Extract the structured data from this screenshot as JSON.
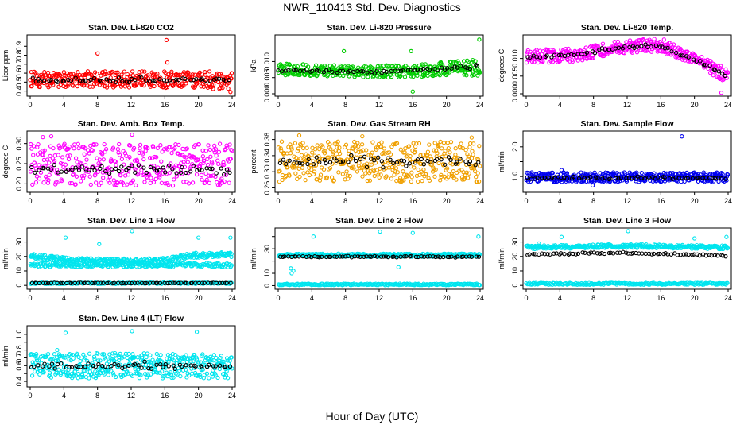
{
  "figure": {
    "title": "NWR_110413  Std. Dev. Diagnostics",
    "xlabel": "Hour of Day (UTC)"
  },
  "chart_data": [
    {
      "type": "scatter",
      "title": "Stan. Dev. Li-820 CO2",
      "ylabel": "Licor ppm",
      "xlim": [
        0,
        24
      ],
      "ylim": [
        0.37,
        1.0
      ],
      "xticks": [
        0,
        4,
        8,
        12,
        16,
        20,
        24
      ],
      "yticks": [
        0.4,
        0.5,
        0.6,
        0.7,
        0.8,
        0.9
      ],
      "color": "#ff0000",
      "series": [
        {
          "band": [
            [
              0,
              0.44,
              0.62
            ],
            [
              12,
              0.44,
              0.62
            ],
            [
              24,
              0.42,
              0.62
            ]
          ],
          "n": 380
        },
        {
          "line": [
            [
              0,
              0.52
            ],
            [
              12,
              0.52
            ],
            [
              24,
              0.53
            ]
          ],
          "jitter": 0.04,
          "n": 60,
          "color": "#000000"
        }
      ],
      "points": [
        [
          8,
          0.82
        ],
        [
          16.2,
          0.97
        ],
        [
          16.3,
          0.72
        ],
        [
          23.8,
          0.39
        ]
      ]
    },
    {
      "type": "scatter",
      "title": "Stan. Dev. Li-820 Pressure",
      "ylabel": "kPa",
      "xlim": [
        0,
        24
      ],
      "ylim": [
        0.0,
        0.0175
      ],
      "xticks": [
        0,
        4,
        8,
        12,
        16,
        20,
        24
      ],
      "yticks": [
        0.0,
        0.005,
        0.01
      ],
      "ytick_labels": [
        "0.000",
        "0.005",
        "0.010"
      ],
      "color": "#00cc00",
      "series": [
        {
          "band": [
            [
              0,
              0.0058,
              0.0094
            ],
            [
              12,
              0.005,
              0.0088
            ],
            [
              24,
              0.0055,
              0.0106
            ]
          ],
          "n": 380
        },
        {
          "line": [
            [
              0,
              0.0074
            ],
            [
              12,
              0.0068
            ],
            [
              24,
              0.0085
            ]
          ],
          "jitter": 0.0008,
          "n": 60,
          "color": "#000000"
        }
      ],
      "points": [
        [
          7.8,
          0.0132
        ],
        [
          15.8,
          0.0132
        ],
        [
          23.9,
          0.0168
        ],
        [
          16,
          0.0007
        ]
      ]
    },
    {
      "type": "scatter",
      "title": "Stan. Dev. Li-820 Temp.",
      "ylabel": "degrees C",
      "xlim": [
        0,
        24
      ],
      "ylim": [
        0.0,
        0.016
      ],
      "xticks": [
        0,
        4,
        8,
        12,
        16,
        20,
        24
      ],
      "yticks": [
        0.0,
        0.005,
        0.01
      ],
      "ytick_labels": [
        "0.000",
        "0.005",
        "0.010"
      ],
      "color": "#ff00ff",
      "series": [
        {
          "band": [
            [
              0,
              0.0086,
              0.0124
            ],
            [
              6,
              0.0091,
              0.0129
            ],
            [
              11,
              0.0115,
              0.015
            ],
            [
              16,
              0.0118,
              0.0158
            ],
            [
              20,
              0.0082,
              0.0115
            ],
            [
              24,
              0.0028,
              0.0072
            ]
          ],
          "n": 380
        },
        {
          "line": [
            [
              0,
              0.0105
            ],
            [
              6,
              0.011
            ],
            [
              11,
              0.0132
            ],
            [
              16,
              0.0136
            ],
            [
              20,
              0.0098
            ],
            [
              24,
              0.005
            ]
          ],
          "jitter": 0.0007,
          "n": 60,
          "color": "#000000"
        }
      ],
      "points": [
        [
          23.2,
          0.0003
        ]
      ]
    },
    {
      "type": "scatter",
      "title": "Stan. Dev. Amb. Box Temp.",
      "ylabel": "degrees C",
      "xlim": [
        0,
        24
      ],
      "ylim": [
        0.185,
        0.325
      ],
      "xticks": [
        0,
        4,
        8,
        12,
        16,
        20,
        24
      ],
      "yticks": [
        0.2,
        0.25,
        0.3
      ],
      "ytick_labels": [
        "0.20",
        "0.25",
        "0.30"
      ],
      "color": "#ff00ff",
      "series": [
        {
          "band": [
            [
              0,
              0.195,
              0.3
            ],
            [
              12,
              0.195,
              0.3
            ],
            [
              24,
              0.195,
              0.3
            ]
          ],
          "n": 380
        },
        {
          "line": [
            [
              0,
              0.235
            ],
            [
              12,
              0.235
            ],
            [
              24,
              0.235
            ]
          ],
          "jitter": 0.015,
          "n": 60,
          "color": "#000000"
        }
      ],
      "points": [
        [
          12.1,
          0.322
        ],
        [
          2.5,
          0.318
        ],
        [
          1.5,
          0.316
        ]
      ]
    },
    {
      "type": "scatter",
      "title": "Stan. Dev. Gas Stream RH",
      "ylabel": "percent",
      "xlim": [
        0,
        24
      ],
      "ylim": [
        0.255,
        0.395
      ],
      "xticks": [
        0,
        4,
        8,
        12,
        16,
        20,
        24
      ],
      "yticks": [
        0.26,
        0.3,
        0.34,
        0.38
      ],
      "ytick_labels": [
        "0.26",
        "0.30",
        "0.34",
        "0.38"
      ],
      "color": "#f0a000",
      "series": [
        {
          "band": [
            [
              0,
              0.275,
              0.375
            ],
            [
              12,
              0.275,
              0.375
            ],
            [
              24,
              0.275,
              0.375
            ]
          ],
          "n": 420
        },
        {
          "line": [
            [
              0,
              0.325
            ],
            [
              12,
              0.325
            ],
            [
              24,
              0.33
            ]
          ],
          "jitter": 0.018,
          "n": 60,
          "color": "#000000"
        }
      ],
      "points": [
        [
          2.5,
          0.39
        ],
        [
          23,
          0.385
        ],
        [
          10,
          0.388
        ]
      ]
    },
    {
      "type": "scatter",
      "title": "Stan. Dev. Sample Flow",
      "ylabel": "ml/min",
      "xlim": [
        0,
        24
      ],
      "ylim": [
        0.55,
        2.45
      ],
      "xticks": [
        0,
        4,
        8,
        12,
        16,
        20,
        24
      ],
      "yticks": [
        1.0,
        1.5,
        2.0
      ],
      "ytick_labels": [
        "1.0",
        "",
        "2.0"
      ],
      "color": "#0000ee",
      "series": [
        {
          "band": [
            [
              0,
              0.82,
              1.14
            ],
            [
              12,
              0.82,
              1.14
            ],
            [
              24,
              0.82,
              1.14
            ]
          ],
          "n": 420
        },
        {
          "line": [
            [
              0,
              0.95
            ],
            [
              12,
              0.95
            ],
            [
              24,
              0.95
            ]
          ],
          "jitter": 0.07,
          "n": 60,
          "color": "#000000"
        }
      ],
      "points": [
        [
          18.5,
          2.35
        ],
        [
          7.9,
          0.7
        ],
        [
          4.2,
          1.22
        ]
      ]
    },
    {
      "type": "scatter",
      "title": "Stan. Dev. Line 1 Flow",
      "ylabel": "ml/min",
      "xlim": [
        0,
        24
      ],
      "ylim": [
        -1,
        38
      ],
      "xticks": [
        0,
        4,
        8,
        12,
        16,
        20,
        24
      ],
      "yticks": [
        0,
        10,
        20,
        30
      ],
      "color": "#00e5ee",
      "series": [
        {
          "band": [
            [
              0,
              18.5,
              22
            ],
            [
              4,
              16,
              19.5
            ],
            [
              10,
              15,
              18.5
            ],
            [
              16,
              15.5,
              19
            ],
            [
              19,
              19,
              22.5
            ],
            [
              24,
              19.5,
              23
            ]
          ],
          "n": 320
        },
        {
          "band": [
            [
              0,
              12.5,
              15.5
            ],
            [
              24,
              12.5,
              15.5
            ]
          ],
          "n": 240
        },
        {
          "band": [
            [
              0,
              1.0,
              2.0
            ],
            [
              24,
              1.0,
              2.0
            ]
          ],
          "n": 180
        },
        {
          "line": [
            [
              0,
              1.6
            ],
            [
              24,
              1.6
            ]
          ],
          "jitter": 0.3,
          "n": 70,
          "color": "#000000"
        }
      ],
      "points": [
        [
          4.2,
          33
        ],
        [
          12.1,
          37.5
        ],
        [
          20,
          33
        ],
        [
          23.8,
          33
        ],
        [
          8.2,
          28.5
        ]
      ]
    },
    {
      "type": "scatter",
      "title": "Stan. Dev. Line 2 Flow",
      "ylabel": "ml/min",
      "xlim": [
        0,
        24
      ],
      "ylim": [
        -1,
        45
      ],
      "xticks": [
        0,
        4,
        8,
        12,
        16,
        20,
        24
      ],
      "yticks": [
        0,
        10,
        20,
        30,
        40
      ],
      "ytick_labels": [
        "0",
        "10",
        "",
        "30",
        ""
      ],
      "color": "#00e5ee",
      "series": [
        {
          "band": [
            [
              0,
              23.5,
              26
            ],
            [
              24,
              23.5,
              26
            ]
          ],
          "n": 320
        },
        {
          "band": [
            [
              0,
              0.4,
              1.6
            ],
            [
              24,
              0.4,
              1.6
            ]
          ],
          "n": 220
        },
        {
          "line": [
            [
              0,
              23.5
            ],
            [
              24,
              23.5
            ]
          ],
          "jitter": 0.8,
          "n": 70,
          "color": "#000000"
        }
      ],
      "points": [
        [
          4.2,
          40
        ],
        [
          12.1,
          44
        ],
        [
          16,
          43
        ],
        [
          23.8,
          40
        ],
        [
          1.6,
          10
        ],
        [
          1.8,
          12
        ],
        [
          1.5,
          14
        ],
        [
          14.3,
          15
        ]
      ]
    },
    {
      "type": "scatter",
      "title": "Stan. Dev. Line 3 Flow",
      "ylabel": "ml/min",
      "xlim": [
        0,
        24
      ],
      "ylim": [
        -1,
        38
      ],
      "xticks": [
        0,
        4,
        8,
        12,
        16,
        20,
        24
      ],
      "yticks": [
        0,
        10,
        20,
        30
      ],
      "color": "#00e5ee",
      "series": [
        {
          "band": [
            [
              0,
              25,
              27.5
            ],
            [
              12,
              26,
              28.5
            ],
            [
              24,
              25,
              27.5
            ]
          ],
          "n": 320
        },
        {
          "band": [
            [
              0,
              0.5,
              1.8
            ],
            [
              24,
              0.5,
              1.8
            ]
          ],
          "n": 220
        },
        {
          "line": [
            [
              0,
              21.5
            ],
            [
              12,
              22.5
            ],
            [
              24,
              20.5
            ]
          ],
          "jitter": 0.9,
          "n": 70,
          "color": "#000000"
        }
      ],
      "points": [
        [
          4.2,
          33.5
        ],
        [
          12.1,
          37.5
        ],
        [
          20,
          32.5
        ],
        [
          23.8,
          33.5
        ],
        [
          1.5,
          29
        ]
      ]
    },
    {
      "type": "scatter",
      "title": "Stan. Dev. Line 4 (LT) Flow",
      "ylabel": "ml/min",
      "xlim": [
        0,
        24
      ],
      "ylim": [
        0.36,
        1.08
      ],
      "xticks": [
        0,
        4,
        8,
        12,
        16,
        20,
        24
      ],
      "yticks": [
        0.4,
        0.5,
        0.6,
        0.7,
        0.8,
        0.9,
        1.0
      ],
      "ytick_labels": [
        "0.4",
        "",
        "0.6",
        "0.7",
        "0.8",
        "",
        "1.0"
      ],
      "color": "#00e5ee",
      "series": [
        {
          "band": [
            [
              0,
              0.44,
              0.76
            ],
            [
              24,
              0.44,
              0.76
            ]
          ],
          "n": 420
        },
        {
          "line": [
            [
              0,
              0.6
            ],
            [
              24,
              0.6
            ]
          ],
          "jitter": 0.06,
          "n": 60,
          "color": "#000000"
        }
      ],
      "points": [
        [
          4.2,
          1.02
        ],
        [
          12.1,
          1.04
        ],
        [
          19.8,
          1.03
        ],
        [
          3.2,
          0.8
        ]
      ]
    }
  ]
}
